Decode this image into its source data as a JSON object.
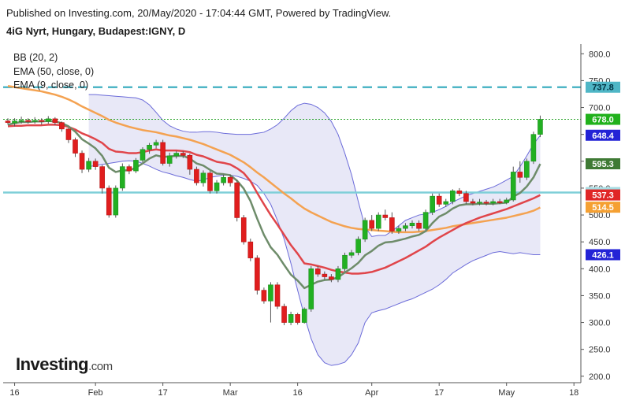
{
  "header": {
    "published": "Published on Investing.com, 20/May/2020 - 17:04:44 GMT, Powered by TradingView.",
    "instrument": "4iG Nyrt, Hungary, Budapest:IGNY, D"
  },
  "indicators": [
    "BB (20, 2)",
    "EMA (50, close, 0)",
    "EMA (9, close, 0)"
  ],
  "logo": {
    "main": "Investing",
    "suffix": ".com"
  },
  "chart_data": {
    "type": "candlestick",
    "ylim": [
      188,
      818
    ],
    "y_ticks": [
      200,
      250,
      300,
      350,
      400,
      450,
      500,
      550,
      600,
      650,
      700,
      750,
      800
    ],
    "y_tick_labels": [
      "200.0",
      "250.0",
      "300.0",
      "350.0",
      "400.0",
      "450.0",
      "500.0",
      "550.0",
      "600.0",
      "650.0",
      "700.0",
      "750.0",
      "800.0"
    ],
    "x_tick_labels": [
      {
        "label": "16",
        "index": 1
      },
      {
        "label": "Feb",
        "index": 13
      },
      {
        "label": "17",
        "index": 23
      },
      {
        "label": "Mar",
        "index": 33
      },
      {
        "label": "16",
        "index": 43
      },
      {
        "label": "Apr",
        "index": 54
      },
      {
        "label": "17",
        "index": 64
      },
      {
        "label": "May",
        "index": 74
      },
      {
        "label": "18",
        "index": 84
      }
    ],
    "horizontal_lines": [
      {
        "value": 737.8,
        "color": "#4fb6c6",
        "style": "dashed"
      },
      {
        "value": 541.8,
        "color": "#7fcfd8",
        "style": "solid"
      },
      {
        "value": 678.0,
        "color": "#26a326",
        "style": "dotted"
      }
    ],
    "price_labels": [
      {
        "text": "737.8",
        "value": 737.8,
        "bg": "#4fb6c6",
        "fg": "#003040"
      },
      {
        "text": "678.0",
        "value": 678.0,
        "bg": "#21b11c",
        "fg": "#ffffff"
      },
      {
        "text": "648.4",
        "value": 648.4,
        "bg": "#2323d6",
        "fg": "#ffffff"
      },
      {
        "text": "595.3",
        "value": 595.3,
        "bg": "#3f7a35",
        "fg": "#ffffff"
      },
      {
        "text": "541.8",
        "value": 541.8,
        "bg": "#a7dbe2",
        "fg": "#003040"
      },
      {
        "text": "537.3",
        "value": 537.3,
        "bg": "#e02626",
        "fg": "#ffffff"
      },
      {
        "text": "514.5",
        "value": 514.5,
        "bg": "#f5a032",
        "fg": "#ffffff"
      },
      {
        "text": "426.1",
        "value": 426.1,
        "bg": "#2323d6",
        "fg": "#ffffff"
      }
    ],
    "candles": [
      [
        675,
        672,
        680,
        668
      ],
      [
        671,
        675,
        680,
        665
      ],
      [
        675,
        676,
        683,
        670
      ],
      [
        676,
        674,
        680,
        670
      ],
      [
        674,
        676,
        682,
        670
      ],
      [
        676,
        674,
        680,
        668
      ],
      [
        674,
        679,
        684,
        670
      ],
      [
        679,
        672,
        682,
        667
      ],
      [
        672,
        660,
        674,
        655
      ],
      [
        660,
        640,
        662,
        634
      ],
      [
        640,
        615,
        644,
        608
      ],
      [
        615,
        585,
        620,
        578
      ],
      [
        585,
        600,
        606,
        580
      ],
      [
        600,
        590,
        605,
        584
      ],
      [
        590,
        550,
        593,
        540
      ],
      [
        550,
        500,
        555,
        495
      ],
      [
        500,
        550,
        555,
        495
      ],
      [
        550,
        590,
        596,
        545
      ],
      [
        590,
        582,
        594,
        576
      ],
      [
        582,
        602,
        606,
        578
      ],
      [
        602,
        622,
        626,
        598
      ],
      [
        622,
        630,
        634,
        614
      ],
      [
        630,
        635,
        640,
        624
      ],
      [
        635,
        596,
        640,
        592
      ],
      [
        596,
        610,
        616,
        590
      ],
      [
        610,
        615,
        619,
        605
      ],
      [
        615,
        611,
        619,
        606
      ],
      [
        611,
        585,
        614,
        575
      ],
      [
        585,
        560,
        590,
        555
      ],
      [
        560,
        578,
        583,
        553
      ],
      [
        578,
        545,
        582,
        540
      ],
      [
        545,
        560,
        565,
        540
      ],
      [
        560,
        570,
        575,
        555
      ],
      [
        570,
        560,
        575,
        553
      ],
      [
        560,
        495,
        565,
        488
      ],
      [
        495,
        450,
        500,
        445
      ],
      [
        450,
        420,
        456,
        414
      ],
      [
        420,
        360,
        425,
        352
      ],
      [
        360,
        340,
        365,
        335
      ],
      [
        340,
        370,
        375,
        300
      ],
      [
        370,
        330,
        375,
        325
      ],
      [
        330,
        300,
        335,
        295
      ],
      [
        300,
        315,
        320,
        295
      ],
      [
        315,
        300,
        318,
        296
      ],
      [
        300,
        325,
        328,
        298
      ],
      [
        325,
        400,
        405,
        320
      ],
      [
        400,
        390,
        405,
        385
      ],
      [
        390,
        385,
        395,
        380
      ],
      [
        385,
        380,
        390,
        375
      ],
      [
        380,
        400,
        405,
        375
      ],
      [
        400,
        425,
        430,
        395
      ],
      [
        425,
        430,
        435,
        420
      ],
      [
        430,
        455,
        460,
        425
      ],
      [
        455,
        490,
        495,
        450
      ],
      [
        490,
        475,
        500,
        470
      ],
      [
        475,
        500,
        505,
        470
      ],
      [
        500,
        495,
        510,
        490
      ],
      [
        495,
        470,
        505,
        465
      ],
      [
        470,
        475,
        480,
        465
      ],
      [
        475,
        480,
        485,
        470
      ],
      [
        480,
        485,
        490,
        475
      ],
      [
        485,
        475,
        490,
        470
      ],
      [
        475,
        505,
        510,
        472
      ],
      [
        505,
        535,
        540,
        500
      ],
      [
        535,
        520,
        540,
        515
      ],
      [
        520,
        525,
        530,
        515
      ],
      [
        525,
        545,
        548,
        520
      ],
      [
        545,
        540,
        550,
        535
      ],
      [
        540,
        525,
        545,
        520
      ],
      [
        525,
        522,
        530,
        518
      ],
      [
        522,
        524,
        530,
        518
      ],
      [
        524,
        522,
        528,
        518
      ],
      [
        522,
        525,
        530,
        518
      ],
      [
        525,
        523,
        530,
        520
      ],
      [
        523,
        528,
        532,
        520
      ],
      [
        528,
        580,
        590,
        525
      ],
      [
        580,
        570,
        600,
        560
      ],
      [
        570,
        600,
        605,
        565
      ],
      [
        600,
        650,
        655,
        595
      ],
      [
        650,
        678,
        685,
        645
      ]
    ],
    "ema9": [
      668,
      671,
      673,
      673,
      674,
      674,
      675,
      674,
      671,
      665,
      655,
      641,
      633,
      624,
      610,
      588,
      580,
      583,
      583,
      588,
      596,
      605,
      611,
      608,
      609,
      610,
      610,
      605,
      596,
      592,
      584,
      577,
      576,
      574,
      564,
      549,
      526,
      493,
      463,
      440,
      426,
      407,
      389,
      378,
      364,
      370,
      376,
      379,
      380,
      384,
      393,
      401,
      411,
      425,
      433,
      443,
      449,
      450,
      453,
      456,
      460,
      463,
      470,
      485,
      497,
      503,
      512,
      518,
      520,
      520,
      521,
      521,
      521,
      522,
      523,
      534,
      541,
      553,
      570,
      595
    ],
    "ema50": [
      740,
      738,
      736,
      734,
      732,
      730,
      727,
      724,
      720,
      715,
      709,
      702,
      696,
      690,
      684,
      677,
      672,
      668,
      664,
      661,
      658,
      656,
      654,
      651,
      648,
      646,
      643,
      640,
      636,
      632,
      627,
      622,
      617,
      612,
      605,
      598,
      589,
      579,
      570,
      560,
      550,
      540,
      531,
      521,
      512,
      505,
      499,
      493,
      487,
      483,
      479,
      476,
      474,
      473,
      472,
      471,
      470,
      469,
      468,
      468,
      468,
      469,
      470,
      472,
      474,
      476,
      479,
      481,
      483,
      485,
      487,
      489,
      491,
      493,
      495,
      498,
      501,
      504,
      508,
      514
    ],
    "ema_red": [
      665,
      666,
      666,
      667,
      667,
      667,
      668,
      668,
      667,
      664,
      659,
      652,
      647,
      641,
      634,
      623,
      618,
      617,
      615,
      615,
      617,
      620,
      622,
      620,
      620,
      620,
      619,
      617,
      612,
      609,
      604,
      599,
      597,
      594,
      587,
      578,
      563,
      541,
      520,
      500,
      482,
      463,
      444,
      428,
      410,
      408,
      405,
      402,
      398,
      395,
      393,
      391,
      391,
      392,
      394,
      398,
      402,
      408,
      414,
      420,
      427,
      434,
      441,
      450,
      458,
      465,
      472,
      479,
      485,
      490,
      495,
      499,
      503,
      507,
      511,
      516,
      521,
      526,
      531,
      537
    ],
    "bb_upper": [
      724,
      724,
      723,
      722,
      721,
      720,
      719,
      718,
      714,
      705,
      691,
      676,
      666,
      660,
      656,
      654,
      654,
      655,
      655,
      654,
      652,
      651,
      650,
      650,
      650,
      652,
      654,
      660,
      668,
      680,
      694,
      704,
      708,
      706,
      700,
      690,
      674,
      650,
      615,
      575,
      525,
      478,
      460,
      462,
      462,
      470,
      480,
      490,
      495,
      500,
      502,
      505,
      510,
      516,
      524,
      530,
      536,
      540,
      544,
      548,
      552,
      558,
      565,
      572,
      590,
      610,
      632,
      648
    ],
    "bb_lower": [
      590,
      592,
      594,
      596,
      598,
      600,
      601,
      600,
      596,
      591,
      585,
      580,
      577,
      573,
      570,
      566,
      563,
      565,
      570,
      572,
      574,
      574,
      572,
      568,
      563,
      555,
      540,
      520,
      490,
      455,
      410,
      360,
      312,
      270,
      240,
      225,
      220,
      222,
      226,
      240,
      262,
      300,
      318,
      322,
      325,
      330,
      335,
      340,
      344,
      350,
      356,
      362,
      370,
      380,
      392,
      400,
      408,
      415,
      420,
      425,
      430,
      432,
      430,
      428,
      430,
      428,
      426,
      426
    ],
    "bb_start_index": 12
  }
}
